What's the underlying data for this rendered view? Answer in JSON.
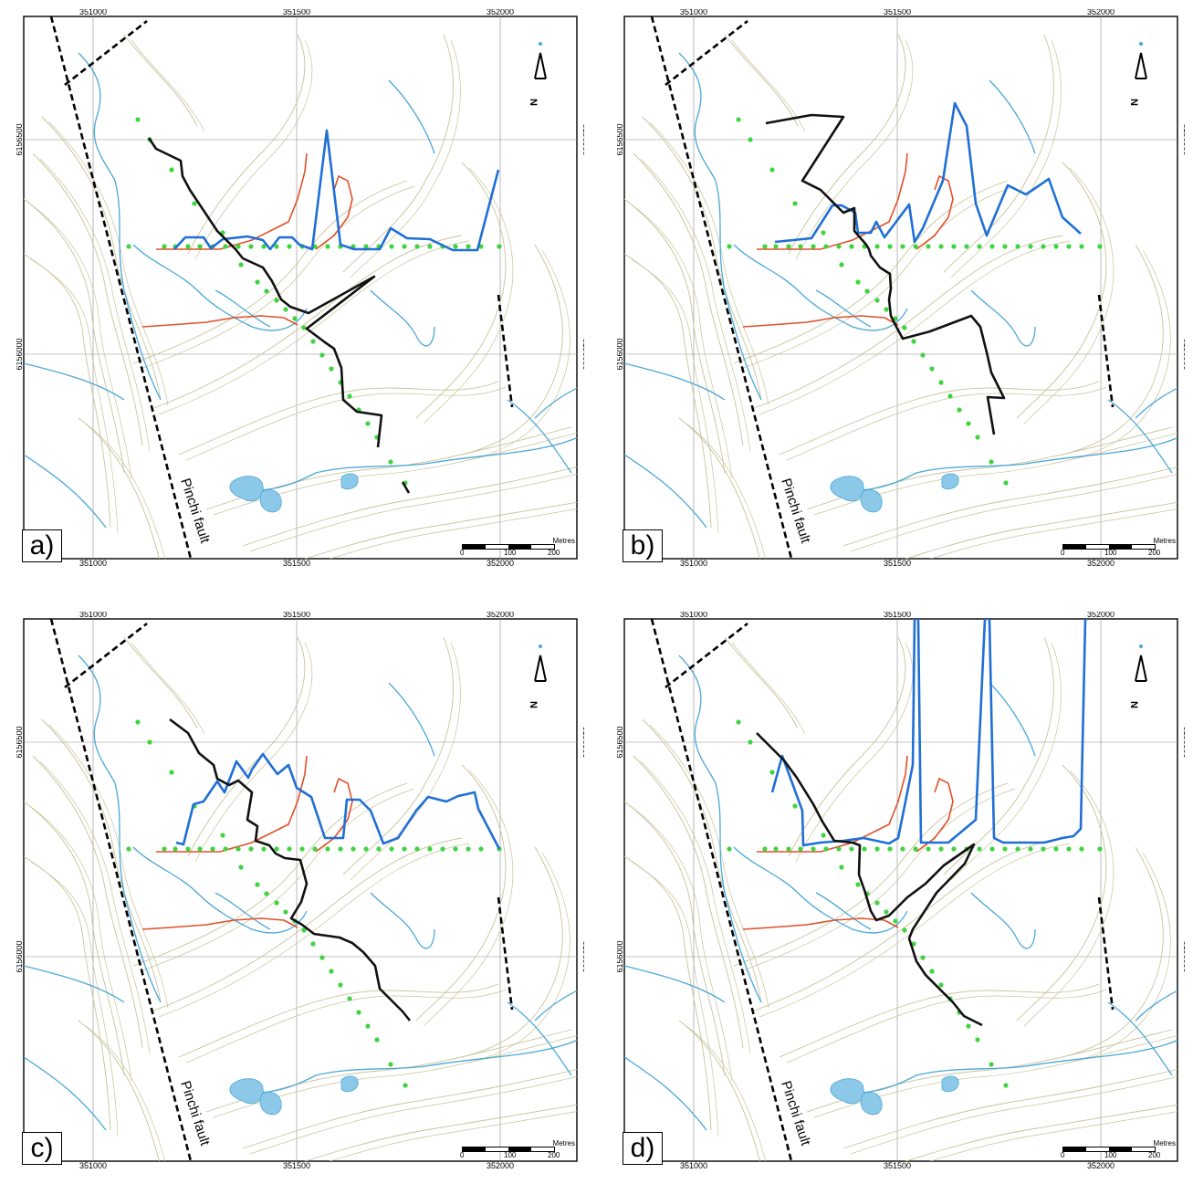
{
  "figure": {
    "panels": [
      {
        "id": "a",
        "label": "a)"
      },
      {
        "id": "b",
        "label": "b)"
      },
      {
        "id": "c",
        "label": "c)"
      },
      {
        "id": "d",
        "label": "d)"
      }
    ],
    "easting_ticks": [
      "351000",
      "351500",
      "352000"
    ],
    "northing_ticks": [
      "6156500",
      "6156000"
    ],
    "fault_label": "Pinchi fault",
    "scale": {
      "unit": "Metres",
      "ticks": [
        "0",
        "100",
        "200"
      ]
    },
    "north_arrow": "N"
  },
  "colors": {
    "contour": "#c8c39a",
    "stream": "#4aa8d8",
    "lake": "#8cc8e8",
    "red_line": "#e0502a",
    "blue_profile": "#1f6fd6",
    "black_profile": "#111111",
    "green_stations": "#3fd43f",
    "grid": "#8a8a8a"
  }
}
